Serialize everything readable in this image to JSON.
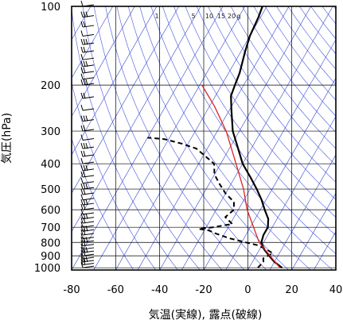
{
  "chart_data": {
    "type": "line",
    "subtype": "skew-t log-p sounding",
    "title": "",
    "xlabel": "気温(実線), 露点(破線)",
    "ylabel": "気圧(hPa)",
    "xlim": [
      -80,
      40
    ],
    "ylim": [
      1020,
      100
    ],
    "y_scale": "log",
    "x_ticks": [
      "-80",
      "-60",
      "-40",
      "-20",
      "0",
      "20",
      "40"
    ],
    "y_ticks": [
      "100",
      "200",
      "300",
      "400",
      "500",
      "600",
      "700",
      "800",
      "900",
      "1000"
    ],
    "mixing_ratio_labels": [
      "1",
      "5",
      "10",
      "15",
      "20",
      "g"
    ],
    "grid": true,
    "colors": {
      "frame": "#000000",
      "grid": "#000000",
      "isotherm": "#3344cc",
      "adiabat": "#4455dd",
      "parcel": "#dd2222",
      "temperature": "#000000",
      "dewpoint": "#000000",
      "wind": "#000000"
    },
    "series": [
      {
        "style": "solid",
        "role": "temperature",
        "points": [
          {
            "p": 1000,
            "t": 15
          },
          {
            "p": 950,
            "t": 10
          },
          {
            "p": 900,
            "t": 6
          },
          {
            "p": 850,
            "t": 2
          },
          {
            "p": 800,
            "t": -1
          },
          {
            "p": 750,
            "t": -2
          },
          {
            "p": 700,
            "t": -2
          },
          {
            "p": 650,
            "t": -4
          },
          {
            "p": 600,
            "t": -8
          },
          {
            "p": 550,
            "t": -12
          },
          {
            "p": 500,
            "t": -17
          },
          {
            "p": 450,
            "t": -23
          },
          {
            "p": 400,
            "t": -30
          },
          {
            "p": 350,
            "t": -36
          },
          {
            "p": 300,
            "t": -43
          },
          {
            "p": 250,
            "t": -49
          },
          {
            "p": 220,
            "t": -53
          },
          {
            "p": 200,
            "t": -54
          },
          {
            "p": 180,
            "t": -55
          },
          {
            "p": 150,
            "t": -58
          },
          {
            "p": 130,
            "t": -60
          },
          {
            "p": 110,
            "t": -61
          },
          {
            "p": 100,
            "t": -62
          }
        ]
      },
      {
        "style": "dashed",
        "role": "dewpoint",
        "points": [
          {
            "p": 1000,
            "t": 4
          },
          {
            "p": 950,
            "t": 5
          },
          {
            "p": 920,
            "t": 4
          },
          {
            "p": 880,
            "t": 7
          },
          {
            "p": 850,
            "t": 3
          },
          {
            "p": 820,
            "t": -2
          },
          {
            "p": 800,
            "t": -8
          },
          {
            "p": 770,
            "t": -17
          },
          {
            "p": 740,
            "t": -24
          },
          {
            "p": 720,
            "t": -28
          },
          {
            "p": 710,
            "t": -33
          },
          {
            "p": 700,
            "t": -27
          },
          {
            "p": 680,
            "t": -19
          },
          {
            "p": 640,
            "t": -24
          },
          {
            "p": 600,
            "t": -22
          },
          {
            "p": 560,
            "t": -24
          },
          {
            "p": 520,
            "t": -30
          },
          {
            "p": 480,
            "t": -35
          },
          {
            "p": 440,
            "t": -40
          },
          {
            "p": 400,
            "t": -43
          },
          {
            "p": 370,
            "t": -50
          },
          {
            "p": 350,
            "t": -55
          },
          {
            "p": 335,
            "t": -63
          },
          {
            "p": 322,
            "t": -72
          },
          {
            "p": 318,
            "t": -80
          }
        ]
      },
      {
        "style": "solid",
        "role": "parcel",
        "points": [
          {
            "p": 1000,
            "t": 14
          },
          {
            "p": 800,
            "t": -2
          },
          {
            "p": 600,
            "t": -16
          },
          {
            "p": 500,
            "t": -23
          },
          {
            "p": 400,
            "t": -33
          },
          {
            "p": 300,
            "t": -46
          },
          {
            "p": 240,
            "t": -58
          },
          {
            "p": 200,
            "t": -69
          }
        ]
      }
    ],
    "wind_levels_hpa": [
      1000,
      975,
      950,
      925,
      900,
      875,
      850,
      825,
      800,
      775,
      750,
      725,
      700,
      675,
      650,
      625,
      600,
      575,
      550,
      525,
      500,
      475,
      450,
      425,
      400,
      375,
      350,
      325,
      300,
      275,
      250,
      225,
      200,
      190,
      180,
      170,
      160,
      150,
      140,
      130,
      120,
      110,
      100
    ]
  }
}
